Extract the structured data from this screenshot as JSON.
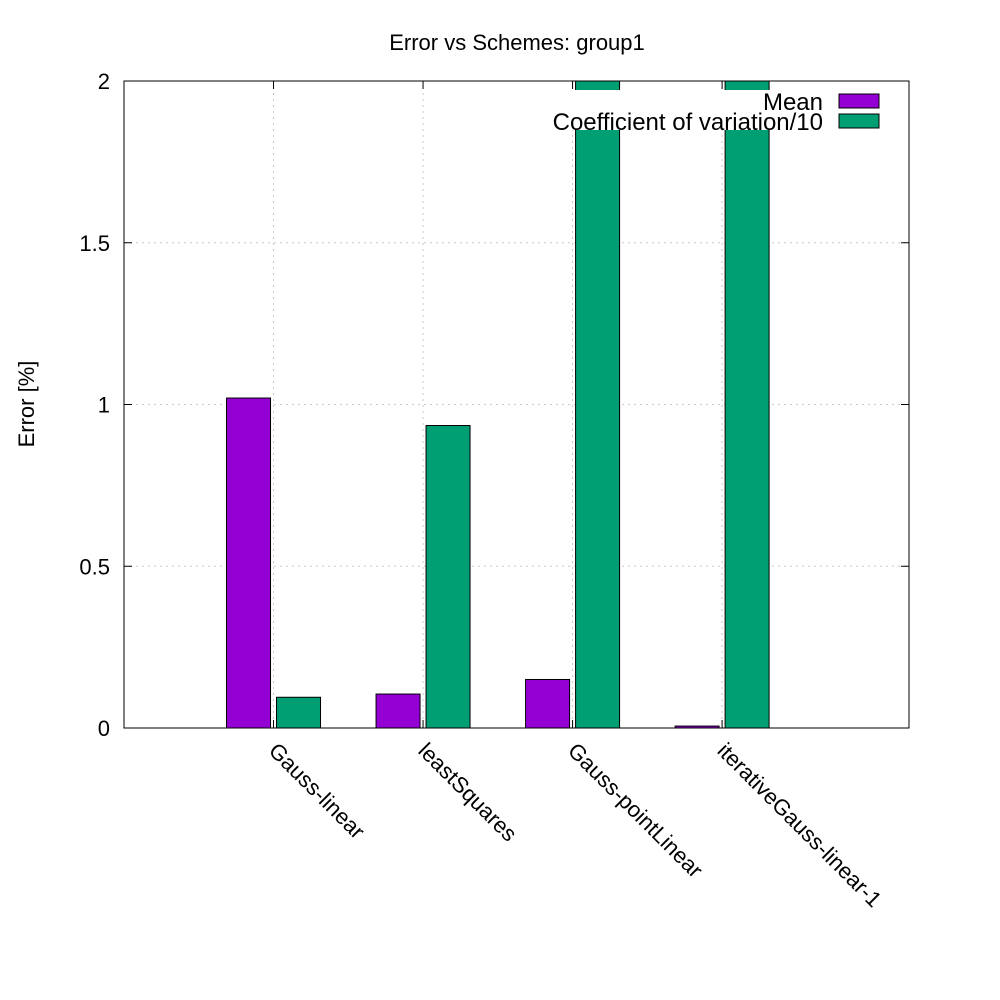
{
  "chart_data": {
    "type": "bar",
    "title": "Error vs Schemes: group1",
    "xlabel": "",
    "ylabel": "Error [%]",
    "ylim": [
      0,
      2
    ],
    "yticks": [
      "0",
      "0.5",
      "1",
      "1.5",
      "2"
    ],
    "grid": true,
    "legend_position": "top-right",
    "categories": [
      "Gauss-linear",
      "leastSquares",
      "Gauss-pointLinear",
      "iterativeGauss-linear-1"
    ],
    "series": [
      {
        "name": "Mean",
        "color": "#9400d3",
        "values": [
          1.02,
          0.105,
          0.15,
          0.006
        ]
      },
      {
        "name": "Coefficient of variation/10",
        "color": "#009e73",
        "values": [
          0.095,
          0.935,
          2.0,
          2.0
        ]
      }
    ]
  }
}
